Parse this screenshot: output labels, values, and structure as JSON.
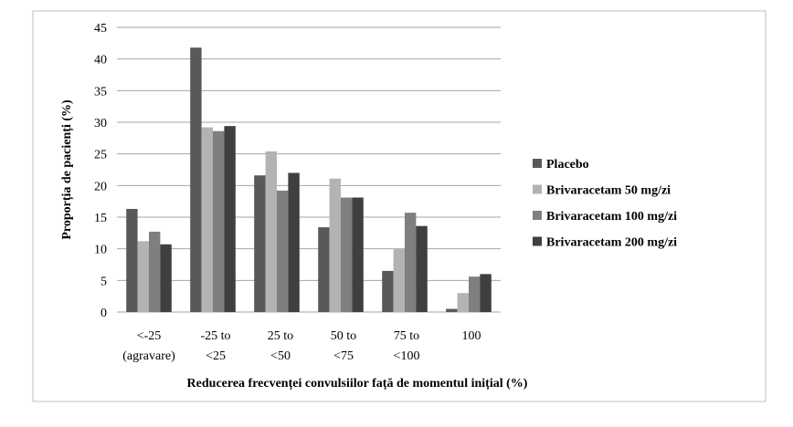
{
  "chart_data": {
    "type": "bar",
    "ylabel": "Proporția de pacienți (%)",
    "xlabel": "Reducerea frecvenței convulsiilor față de momentul inițial (%)",
    "ylim": [
      0,
      45
    ],
    "yticks": [
      0,
      5,
      10,
      15,
      20,
      25,
      30,
      35,
      40,
      45
    ],
    "grid": true,
    "legend_position": "right",
    "categories": [
      [
        "<-25",
        "(agravare)"
      ],
      [
        "-25 to",
        "<25"
      ],
      [
        "25 to",
        "<50"
      ],
      [
        "50 to",
        "<75"
      ],
      [
        "75 to",
        "<100"
      ],
      [
        "100"
      ]
    ],
    "series": [
      {
        "name": "Placebo",
        "color": "#595959",
        "values": [
          16.3,
          41.8,
          21.6,
          13.4,
          6.5,
          0.5
        ]
      },
      {
        "name": "Brivaracetam 50 mg/zi",
        "color": "#b3b3b3",
        "values": [
          11.2,
          29.2,
          25.4,
          21.1,
          10.0,
          3.0
        ]
      },
      {
        "name": "Brivaracetam 100 mg/zi",
        "color": "#7f7f7f",
        "values": [
          12.7,
          28.6,
          19.2,
          18.1,
          15.7,
          5.6
        ]
      },
      {
        "name": "Brivaracetam 200 mg/zi",
        "color": "#3f3f3f",
        "values": [
          10.7,
          29.4,
          22.0,
          18.1,
          13.6,
          6.0
        ]
      }
    ]
  }
}
